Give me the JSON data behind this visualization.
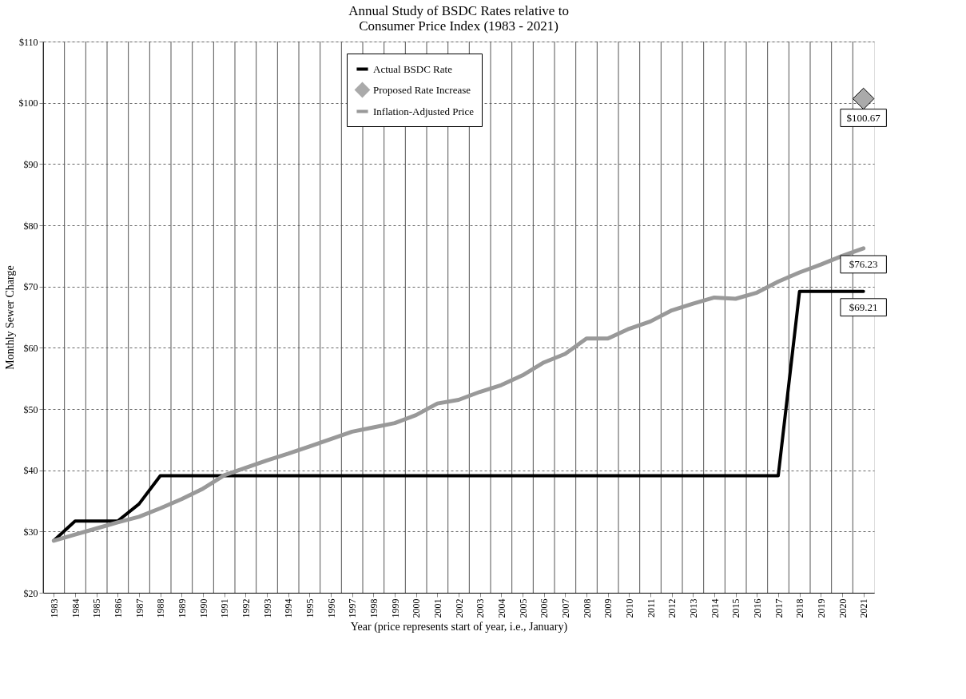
{
  "chart_data": {
    "type": "line",
    "title": [
      "Annual Study of BSDC Rates relative to",
      "Consumer Price Index (1983 - 2021)"
    ],
    "xlabel": "Year (price represents start of year, i.e., January)",
    "ylabel": "Monthly Sewer Charge",
    "categories": [
      "1983",
      "1984",
      "1985",
      "1986",
      "1987",
      "1988",
      "1989",
      "1990",
      "1991",
      "1992",
      "1993",
      "1994",
      "1995",
      "1996",
      "1997",
      "1998",
      "1999",
      "2000",
      "2001",
      "2002",
      "2003",
      "2004",
      "2005",
      "2006",
      "2007",
      "2008",
      "2009",
      "2010",
      "2011",
      "2012",
      "2013",
      "2014",
      "2015",
      "2016",
      "2017",
      "2018",
      "2019",
      "2020",
      "2021"
    ],
    "series": [
      {
        "name": "Actual BSDC Rate",
        "type": "line",
        "color": "#000000",
        "values": [
          28.5,
          31.7,
          31.7,
          31.7,
          34.5,
          39.1,
          39.1,
          39.1,
          39.1,
          39.1,
          39.1,
          39.1,
          39.1,
          39.1,
          39.1,
          39.1,
          39.1,
          39.1,
          39.1,
          39.1,
          39.1,
          39.1,
          39.1,
          39.1,
          39.1,
          39.1,
          39.1,
          39.1,
          39.1,
          39.1,
          39.1,
          39.1,
          39.1,
          39.1,
          39.1,
          69.21,
          69.21,
          69.21,
          69.21
        ],
        "value_labels": [
          null,
          null,
          null,
          null,
          null,
          null,
          null,
          null,
          null,
          null,
          null,
          null,
          null,
          null,
          null,
          null,
          null,
          null,
          null,
          null,
          null,
          null,
          null,
          null,
          null,
          null,
          null,
          null,
          null,
          null,
          null,
          null,
          null,
          null,
          null,
          null,
          null,
          null,
          "$69.21"
        ]
      },
      {
        "name": "Proposed Rate Increase",
        "type": "scatter",
        "marker": "diamond",
        "color": "#aaaaaa",
        "values": [
          null,
          null,
          null,
          null,
          null,
          null,
          null,
          null,
          null,
          null,
          null,
          null,
          null,
          null,
          null,
          null,
          null,
          null,
          null,
          null,
          null,
          null,
          null,
          null,
          null,
          null,
          null,
          null,
          null,
          null,
          null,
          null,
          null,
          null,
          null,
          null,
          null,
          null,
          100.67
        ],
        "value_labels": [
          null,
          null,
          null,
          null,
          null,
          null,
          null,
          null,
          null,
          null,
          null,
          null,
          null,
          null,
          null,
          null,
          null,
          null,
          null,
          null,
          null,
          null,
          null,
          null,
          null,
          null,
          null,
          null,
          null,
          null,
          null,
          null,
          null,
          null,
          null,
          null,
          null,
          null,
          "$100.67"
        ]
      },
      {
        "name": "Inflation-Adjusted Price",
        "type": "line",
        "color": "#999999",
        "values": [
          28.5,
          29.5,
          30.5,
          31.5,
          32.4,
          33.8,
          35.3,
          37.0,
          39.2,
          40.4,
          41.6,
          42.7,
          43.9,
          45.1,
          46.3,
          47.0,
          47.7,
          49.0,
          50.9,
          51.5,
          52.8,
          53.9,
          55.5,
          57.6,
          59.0,
          61.5,
          61.5,
          63.1,
          64.3,
          66.1,
          67.2,
          68.2,
          68.0,
          69.0,
          70.8,
          72.3,
          73.6,
          75.0,
          76.23
        ],
        "value_labels": [
          null,
          null,
          null,
          null,
          null,
          null,
          null,
          null,
          null,
          null,
          null,
          null,
          null,
          null,
          null,
          null,
          null,
          null,
          null,
          null,
          null,
          null,
          null,
          null,
          null,
          null,
          null,
          null,
          null,
          null,
          null,
          null,
          null,
          null,
          null,
          null,
          null,
          null,
          "$76.23"
        ]
      }
    ],
    "ylim": [
      20,
      110
    ],
    "yticks": [
      {
        "value": 20,
        "label": "$20"
      },
      {
        "value": 30,
        "label": "$30"
      },
      {
        "value": 40,
        "label": "$40"
      },
      {
        "value": 50,
        "label": "$50"
      },
      {
        "value": 60,
        "label": "$60"
      },
      {
        "value": 70,
        "label": "$70"
      },
      {
        "value": 80,
        "label": "$80"
      },
      {
        "value": 90,
        "label": "$90"
      },
      {
        "value": 100,
        "label": "$100"
      },
      {
        "value": 110,
        "label": "$110"
      }
    ],
    "grid": true,
    "legend": "top"
  }
}
